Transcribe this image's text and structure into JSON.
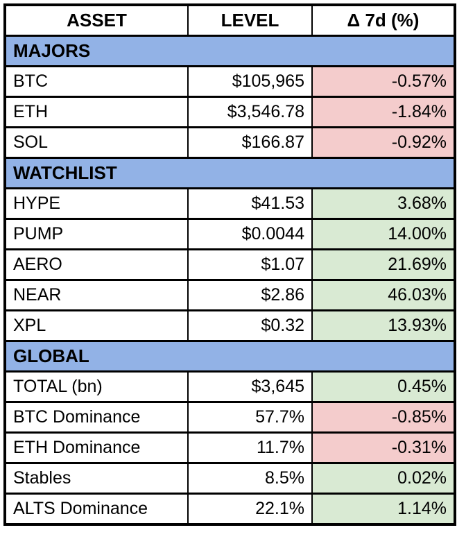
{
  "table": {
    "columns": [
      "ASSET",
      "LEVEL",
      "Δ 7d (%)"
    ],
    "sections": [
      {
        "label": "MAJORS",
        "rows": [
          {
            "asset": "BTC",
            "level": "$105,965",
            "delta": "-0.57%",
            "direction": "down"
          },
          {
            "asset": "ETH",
            "level": "$3,546.78",
            "delta": "-1.84%",
            "direction": "down"
          },
          {
            "asset": "SOL",
            "level": "$166.87",
            "delta": "-0.92%",
            "direction": "down"
          }
        ]
      },
      {
        "label": "WATCHLIST",
        "rows": [
          {
            "asset": "HYPE",
            "level": "$41.53",
            "delta": "3.68%",
            "direction": "up"
          },
          {
            "asset": "PUMP",
            "level": "$0.0044",
            "delta": "14.00%",
            "direction": "up"
          },
          {
            "asset": "AERO",
            "level": "$1.07",
            "delta": "21.69%",
            "direction": "up"
          },
          {
            "asset": "NEAR",
            "level": "$2.86",
            "delta": "46.03%",
            "direction": "up"
          },
          {
            "asset": "XPL",
            "level": "$0.32",
            "delta": "13.93%",
            "direction": "up"
          }
        ]
      },
      {
        "label": "GLOBAL",
        "rows": [
          {
            "asset": "TOTAL (bn)",
            "level": "$3,645",
            "delta": "0.45%",
            "direction": "up"
          },
          {
            "asset": "BTC Dominance",
            "level": "57.7%",
            "delta": "-0.85%",
            "direction": "down"
          },
          {
            "asset": "ETH Dominance",
            "level": "11.7%",
            "delta": "-0.31%",
            "direction": "down"
          },
          {
            "asset": "Stables",
            "level": "8.5%",
            "delta": "0.02%",
            "direction": "up"
          },
          {
            "asset": "ALTS Dominance",
            "level": "22.1%",
            "delta": "1.14%",
            "direction": "up"
          }
        ]
      }
    ],
    "colors": {
      "section_header_bg": "#92B2E6",
      "positive_bg": "#D9EAD3",
      "negative_bg": "#F4CCCC",
      "border": "#000000",
      "text": "#000000"
    }
  }
}
